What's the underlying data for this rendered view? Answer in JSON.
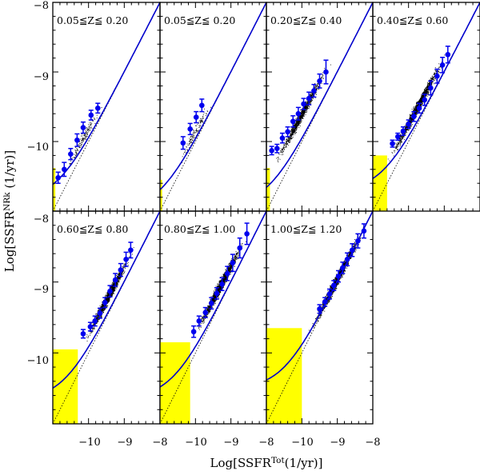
{
  "chart_data": {
    "type": "scatter",
    "x_axis_title": {
      "base": "Log[SSFR",
      "sup": "Tot",
      "tail": "(1/yr)]"
    },
    "y_axis_title": {
      "base": "Log[SSFR",
      "sup": "NRk",
      "tail": " (1/yr)]"
    },
    "xlim": [
      -11.0,
      -8.0
    ],
    "ylim": [
      -11.0,
      -8.0
    ],
    "x_tick_labels": [
      "−10",
      "−9",
      "−8"
    ],
    "y_tick_labels_top": [
      "−8",
      "−9",
      "−10"
    ],
    "y_tick_labels_bottom": [
      "−8",
      "−9",
      "−10"
    ],
    "panels": [
      {
        "label": "0.05≦Z≦  0.20",
        "limit_x": -10.93,
        "limit_y": -10.38,
        "fit": {
          "amp": 0.8,
          "c": -10.75
        },
        "points": [
          [
            -10.85,
            -10.52,
            0.08
          ],
          [
            -10.68,
            -10.4,
            0.1
          ],
          [
            -10.5,
            -10.18,
            0.08
          ],
          [
            -10.32,
            -9.98,
            0.09
          ],
          [
            -10.15,
            -9.8,
            0.08
          ],
          [
            -9.93,
            -9.62,
            0.07
          ],
          [
            -9.74,
            -9.52,
            0.07
          ]
        ],
        "cloud": {
          "x0": -10.9,
          "x1": -9.6,
          "center": [
            -10.15,
            -9.95
          ],
          "count": 160
        }
      },
      {
        "label": "0.05≦Z≦  0.20",
        "limit_x": -10.94,
        "limit_y": -10.55,
        "fit": {
          "amp": 0.58,
          "c": -10.75
        },
        "points": [
          [
            -10.35,
            -10.02,
            0.09
          ],
          [
            -10.15,
            -9.82,
            0.08
          ],
          [
            -9.98,
            -9.65,
            0.08
          ],
          [
            -9.82,
            -9.48,
            0.09
          ]
        ],
        "cloud": {
          "x0": -10.9,
          "x1": -9.6,
          "center": [
            -10.05,
            -9.9
          ],
          "count": 130
        }
      },
      {
        "label": "0.20≦Z≦  0.40",
        "limit_x": -10.9,
        "limit_y": -10.38,
        "fit": {
          "amp": 0.72,
          "c": -10.78
        },
        "points": [
          [
            -10.85,
            -10.13,
            0.06
          ],
          [
            -10.7,
            -10.1,
            0.06
          ],
          [
            -10.55,
            -9.95,
            0.07
          ],
          [
            -10.4,
            -9.86,
            0.07
          ],
          [
            -10.25,
            -9.71,
            0.08
          ],
          [
            -10.1,
            -9.6,
            0.09
          ],
          [
            -9.95,
            -9.46,
            0.08
          ],
          [
            -9.8,
            -9.38,
            0.09
          ],
          [
            -9.66,
            -9.27,
            0.09
          ],
          [
            -9.5,
            -9.13,
            0.1
          ],
          [
            -9.32,
            -9.0,
            0.17
          ]
        ],
        "cloud": {
          "x0": -10.9,
          "x1": -9.1,
          "center": [
            -10.0,
            -9.6
          ],
          "count": 1300
        }
      },
      {
        "label": "0.40≦Z≦  0.60",
        "limit_x": -10.6,
        "limit_y": -10.2,
        "fit": {
          "amp": 1.02,
          "c": -10.72
        },
        "points": [
          [
            -10.45,
            -10.03,
            0.05
          ],
          [
            -10.3,
            -9.93,
            0.05
          ],
          [
            -10.15,
            -9.85,
            0.06
          ],
          [
            -10.0,
            -9.75,
            0.06
          ],
          [
            -9.85,
            -9.64,
            0.07
          ],
          [
            -9.7,
            -9.52,
            0.07
          ],
          [
            -9.55,
            -9.4,
            0.08
          ],
          [
            -9.38,
            -9.23,
            0.1
          ],
          [
            -9.2,
            -9.06,
            0.1
          ],
          [
            -9.05,
            -8.9,
            0.11
          ],
          [
            -8.9,
            -8.75,
            0.12
          ]
        ],
        "cloud": {
          "x0": -10.7,
          "x1": -8.85,
          "center": [
            -9.75,
            -9.5
          ],
          "count": 1800
        }
      },
      {
        "label": "0.60≦Z≦  0.80",
        "limit_x": -10.3,
        "limit_y": -9.95,
        "fit": {
          "amp": 0.98,
          "c": -10.65
        },
        "points": [
          [
            -10.15,
            -9.73,
            0.06
          ],
          [
            -9.95,
            -9.63,
            0.06
          ],
          [
            -9.82,
            -9.55,
            0.07
          ],
          [
            -9.68,
            -9.44,
            0.07
          ],
          [
            -9.54,
            -9.29,
            0.07
          ],
          [
            -9.4,
            -9.13,
            0.08
          ],
          [
            -9.25,
            -8.97,
            0.09
          ],
          [
            -9.1,
            -8.83,
            0.09
          ],
          [
            -8.95,
            -8.68,
            0.1
          ],
          [
            -8.82,
            -8.55,
            0.11
          ]
        ],
        "cloud": {
          "x0": -10.2,
          "x1": -8.65,
          "center": [
            -9.45,
            -9.2
          ],
          "count": 1800
        }
      },
      {
        "label": "0.80≦Z≦  1.00",
        "limit_x": -10.15,
        "limit_y": -9.85,
        "fit": {
          "amp": 0.88,
          "c": -10.58
        },
        "points": [
          [
            -10.05,
            -9.7,
            0.08
          ],
          [
            -9.9,
            -9.55,
            0.07
          ],
          [
            -9.72,
            -9.43,
            0.07
          ],
          [
            -9.55,
            -9.3,
            0.08
          ],
          [
            -9.4,
            -9.16,
            0.08
          ],
          [
            -9.25,
            -9.03,
            0.09
          ],
          [
            -9.1,
            -8.88,
            0.1
          ],
          [
            -8.95,
            -8.73,
            0.12
          ],
          [
            -8.75,
            -8.52,
            0.14
          ],
          [
            -8.55,
            -8.32,
            0.15
          ]
        ],
        "cloud": {
          "x0": -10.1,
          "x1": -8.5,
          "center": [
            -9.3,
            -9.05
          ],
          "count": 2300
        }
      },
      {
        "label": "1.00≦Z≦  1.20",
        "limit_x": -10.0,
        "limit_y": -9.65,
        "fit": {
          "amp": 1.12,
          "c": -10.55
        },
        "points": [
          [
            -9.5,
            -9.38,
            0.06
          ],
          [
            -9.35,
            -9.28,
            0.06
          ],
          [
            -9.22,
            -9.17,
            0.07
          ],
          [
            -9.1,
            -9.05,
            0.07
          ],
          [
            -8.97,
            -8.92,
            0.08
          ],
          [
            -8.85,
            -8.8,
            0.08
          ],
          [
            -8.72,
            -8.68,
            0.09
          ],
          [
            -8.58,
            -8.55,
            0.09
          ],
          [
            -8.42,
            -8.42,
            0.1
          ],
          [
            -8.25,
            -8.28,
            0.1
          ]
        ],
        "cloud": {
          "x0": -9.9,
          "x1": -8.1,
          "center": [
            -9.0,
            -8.95
          ],
          "count": 2100
        }
      }
    ]
  }
}
